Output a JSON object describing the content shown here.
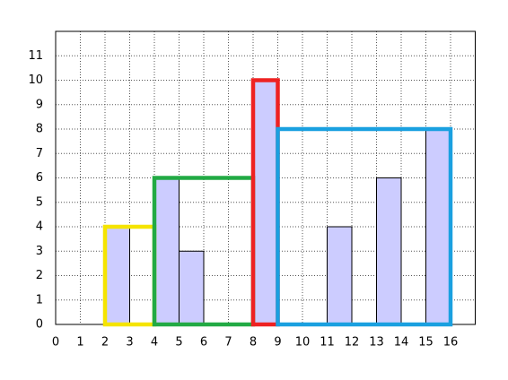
{
  "chart_data": {
    "type": "bar",
    "x": [
      2,
      4,
      5,
      8,
      11,
      13,
      15
    ],
    "values": [
      4,
      6,
      3,
      10,
      4,
      6,
      8
    ],
    "color": "#ccccff",
    "groups": [
      {
        "x": [
          2,
          4
        ],
        "height": 4,
        "color": "#f5e400"
      },
      {
        "x": [
          4,
          8
        ],
        "height": 6,
        "color": "#22aa44"
      },
      {
        "x": [
          8,
          9
        ],
        "height": 10,
        "color": "#ee2222"
      },
      {
        "x": [
          9,
          16
        ],
        "height": 8,
        "color": "#1aa0e0"
      }
    ],
    "xlim": [
      0,
      17
    ],
    "ylim": [
      0,
      12
    ],
    "xticks": [
      0,
      1,
      2,
      3,
      4,
      5,
      6,
      7,
      8,
      9,
      10,
      11,
      12,
      13,
      14,
      15,
      16
    ],
    "yticks": [
      0,
      1,
      2,
      3,
      4,
      5,
      6,
      7,
      8,
      9,
      10,
      11
    ],
    "grid": true
  }
}
